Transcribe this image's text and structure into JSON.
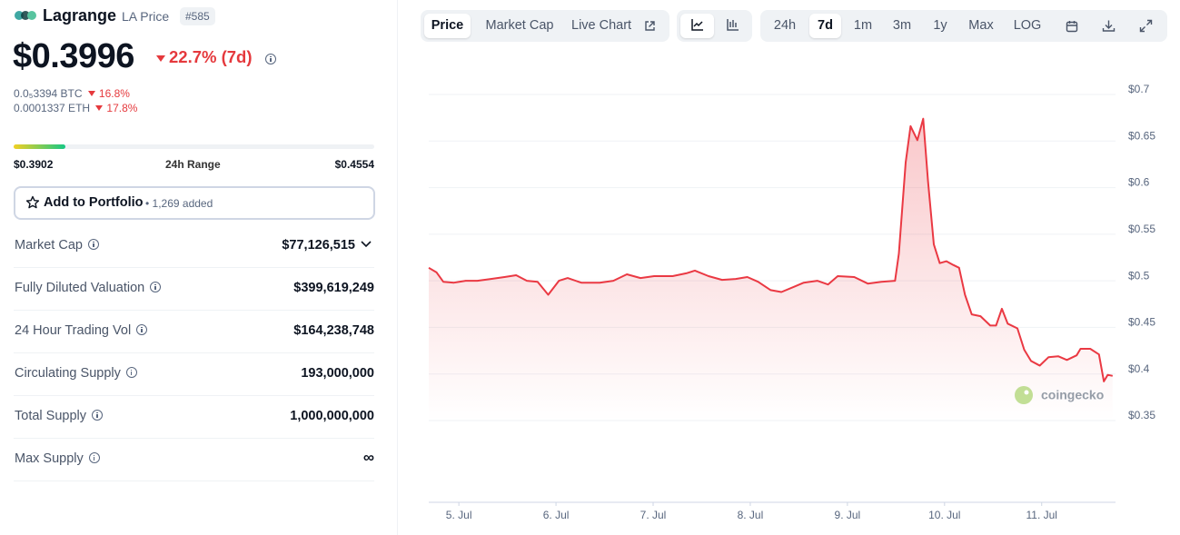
{
  "header": {
    "name": "Lagrange",
    "symbol_label": "LA Price",
    "rank": "#585"
  },
  "price": {
    "value": "$0.3996",
    "change": "22.7% (7d)",
    "btc": "0.0₅3394 BTC",
    "btc_change": "16.8%",
    "eth": "0.0001337 ETH",
    "eth_change": "17.8%"
  },
  "range": {
    "low": "$0.3902",
    "label": "24h Range",
    "high": "$0.4554"
  },
  "portfolio": {
    "button": "Add to Portfolio",
    "added": "• 1,269 added"
  },
  "stats": [
    {
      "label": "Market Cap",
      "value": "$77,126,515"
    },
    {
      "label": "Fully Diluted Valuation",
      "value": "$399,619,249"
    },
    {
      "label": "24 Hour Trading Vol",
      "value": "$164,238,748"
    },
    {
      "label": "Circulating Supply",
      "value": "193,000,000"
    },
    {
      "label": "Total Supply",
      "value": "1,000,000,000"
    },
    {
      "label": "Max Supply",
      "value": "∞"
    }
  ],
  "toolbar": {
    "views": [
      "Price",
      "Market Cap",
      "Live Chart"
    ],
    "ranges": [
      "24h",
      "7d",
      "1m",
      "3m",
      "1y",
      "Max",
      "LOG"
    ]
  },
  "chart_data": {
    "type": "line",
    "color": "#ea3943",
    "watermark": "coingecko",
    "x": [
      4.69,
      4.77,
      4.84,
      4.95,
      5.07,
      5.19,
      5.33,
      5.47,
      5.59,
      5.7,
      5.81,
      5.92,
      6.03,
      6.12,
      6.26,
      6.45,
      6.59,
      6.73,
      6.87,
      7.01,
      7.2,
      7.34,
      7.43,
      7.57,
      7.71,
      7.85,
      7.97,
      8.08,
      8.21,
      8.32,
      8.46,
      8.55,
      8.69,
      8.8,
      8.9,
      9.07,
      9.21,
      9.35,
      9.49,
      9.53,
      9.6,
      9.65,
      9.72,
      9.78,
      9.83,
      9.89,
      9.95,
      10.02,
      10.09,
      10.15,
      10.21,
      10.28,
      10.37,
      10.47,
      10.53,
      10.59,
      10.65,
      10.75,
      10.82,
      10.89,
      10.98,
      11.07,
      11.17,
      11.26,
      11.36,
      11.4,
      11.5,
      11.59,
      11.64,
      11.68,
      11.73
    ],
    "values": [
      0.514,
      0.509,
      0.499,
      0.498,
      0.5,
      0.5,
      0.502,
      0.504,
      0.506,
      0.5,
      0.499,
      0.485,
      0.5,
      0.503,
      0.498,
      0.498,
      0.5,
      0.507,
      0.503,
      0.505,
      0.505,
      0.508,
      0.511,
      0.505,
      0.501,
      0.502,
      0.504,
      0.499,
      0.49,
      0.488,
      0.494,
      0.498,
      0.5,
      0.496,
      0.505,
      0.504,
      0.497,
      0.499,
      0.5,
      0.529,
      0.627,
      0.666,
      0.651,
      0.674,
      0.607,
      0.539,
      0.519,
      0.521,
      0.517,
      0.514,
      0.485,
      0.464,
      0.462,
      0.452,
      0.452,
      0.47,
      0.454,
      0.449,
      0.426,
      0.414,
      0.409,
      0.418,
      0.419,
      0.415,
      0.42,
      0.427,
      0.427,
      0.421,
      0.392,
      0.399,
      0.398
    ],
    "xlim": [
      4.69,
      11.76
    ],
    "xticks": [
      {
        "value": 5,
        "label": "5. Jul"
      },
      {
        "value": 6,
        "label": "6. Jul"
      },
      {
        "value": 7,
        "label": "7. Jul"
      },
      {
        "value": 8,
        "label": "8. Jul"
      },
      {
        "value": 9,
        "label": "9. Jul"
      },
      {
        "value": 10,
        "label": "10. Jul"
      },
      {
        "value": 11,
        "label": "11. Jul"
      }
    ],
    "ylim": [
      0.35,
      0.7
    ],
    "yticks": [
      {
        "value": 0.35,
        "label": "$0.35"
      },
      {
        "value": 0.4,
        "label": "$0.4"
      },
      {
        "value": 0.45,
        "label": "$0.45"
      },
      {
        "value": 0.5,
        "label": "$0.5"
      },
      {
        "value": 0.55,
        "label": "$0.55"
      },
      {
        "value": 0.6,
        "label": "$0.6"
      },
      {
        "value": 0.65,
        "label": "$0.65"
      },
      {
        "value": 0.7,
        "label": "$0.7"
      }
    ],
    "grid": true
  }
}
